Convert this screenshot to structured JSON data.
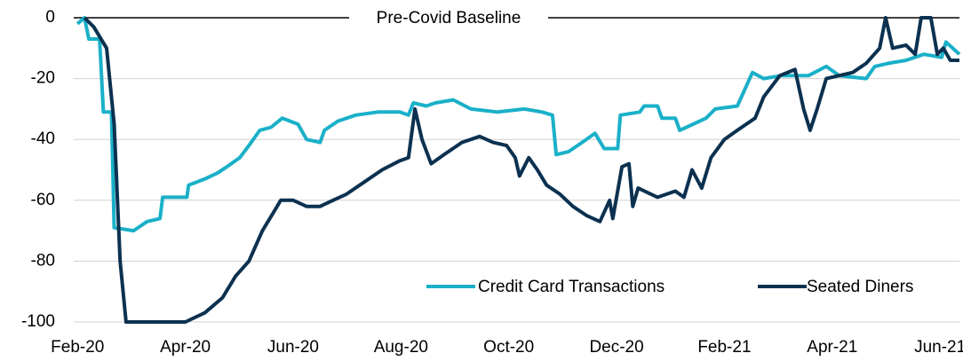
{
  "chart_data": {
    "type": "line",
    "annotation": "Pre-Covid Baseline",
    "xlim": [
      -0.07,
      16.36
    ],
    "xticks": [
      {
        "value": 0,
        "label": "Feb-20"
      },
      {
        "value": 2,
        "label": "Apr-20"
      },
      {
        "value": 4,
        "label": "Jun-20"
      },
      {
        "value": 6,
        "label": "Aug-20"
      },
      {
        "value": 8,
        "label": "Oct-20"
      },
      {
        "value": 10,
        "label": "Dec-20"
      },
      {
        "value": 12,
        "label": "Feb-21"
      },
      {
        "value": 14,
        "label": "Apr-21"
      },
      {
        "value": 16,
        "label": "Jun-21"
      }
    ],
    "ylim": [
      -100,
      0
    ],
    "yticks": [
      0,
      -20,
      -40,
      -60,
      -80,
      -100
    ],
    "grid": true,
    "legend": "lower right",
    "series": [
      {
        "name": "Credit Card Transactions",
        "color": "#1ab0c8",
        "x": [
          0,
          0.13,
          0.21,
          0.41,
          0.48,
          0.63,
          0.68,
          1.04,
          1.29,
          1.53,
          1.58,
          2.03,
          2.06,
          2.36,
          2.6,
          2.77,
          3.01,
          3.18,
          3.38,
          3.59,
          3.8,
          4.09,
          4.25,
          4.5,
          4.58,
          4.83,
          5.16,
          5.57,
          5.98,
          6.14,
          6.23,
          6.47,
          6.64,
          6.97,
          7.3,
          7.79,
          8.29,
          8.62,
          8.81,
          8.88,
          9.11,
          9.36,
          9.6,
          9.77,
          10.02,
          10.07,
          10.43,
          10.51,
          10.76,
          10.84,
          11.09,
          11.17,
          11.42,
          11.66,
          11.83,
          12.24,
          12.52,
          12.73,
          13.06,
          13.56,
          13.89,
          14.13,
          14.63,
          14.79,
          15.04,
          15.37,
          15.7,
          16.03,
          16.11,
          16.36
        ],
        "values": [
          -2,
          0,
          -7,
          -7,
          -31,
          -31,
          -69,
          -70,
          -67,
          -66,
          -59,
          -59,
          -55,
          -53,
          -51,
          -49,
          -46,
          -42,
          -37,
          -36,
          -33,
          -35,
          -40,
          -41,
          -37,
          -34,
          -32,
          -31,
          -31,
          -32,
          -28,
          -29,
          -28,
          -27,
          -30,
          -31,
          -30,
          -31,
          -32,
          -45,
          -44,
          -41,
          -38,
          -43,
          -43,
          -32,
          -31,
          -29,
          -29,
          -33,
          -33,
          -37,
          -35,
          -33,
          -30,
          -29,
          -18,
          -20,
          -19,
          -19,
          -16,
          -19,
          -20,
          -16,
          -15,
          -14,
          -12,
          -13,
          -8,
          -12
        ]
      },
      {
        "name": "Seated Diners",
        "color": "#0c3150",
        "x": [
          0.13,
          0.3,
          0.54,
          0.68,
          0.79,
          0.9,
          2.0,
          2.36,
          2.69,
          2.93,
          3.18,
          3.43,
          3.67,
          3.77,
          4.0,
          4.25,
          4.5,
          4.74,
          4.99,
          5.32,
          5.65,
          5.98,
          6.14,
          6.26,
          6.39,
          6.56,
          6.8,
          7.13,
          7.46,
          7.71,
          7.96,
          8.12,
          8.2,
          8.37,
          8.53,
          8.7,
          8.95,
          9.19,
          9.44,
          9.69,
          9.87,
          9.93,
          10.1,
          10.23,
          10.3,
          10.4,
          10.76,
          11.09,
          11.25,
          11.4,
          11.58,
          11.75,
          12.0,
          12.24,
          12.57,
          12.73,
          13.03,
          13.31,
          13.47,
          13.59,
          13.72,
          13.89,
          14.13,
          14.38,
          14.63,
          14.88,
          14.99,
          15.12,
          15.37,
          15.54,
          15.65,
          15.83,
          15.95,
          16.06,
          16.19,
          16.36
        ],
        "values": [
          0,
          -3,
          -10,
          -35,
          -80,
          -100,
          -100,
          -97,
          -92,
          -85,
          -80,
          -70,
          -63,
          -60,
          -60,
          -62,
          -62,
          -60,
          -58,
          -54,
          -50,
          -47,
          -46,
          -30,
          -40,
          -48,
          -45,
          -41,
          -39,
          -41,
          -42,
          -46,
          -52,
          -46,
          -50,
          -55,
          -58,
          -62,
          -65,
          -67,
          -60,
          -66,
          -49,
          -48,
          -62,
          -56,
          -59,
          -57,
          -59,
          -50,
          -56,
          -46,
          -40,
          -37,
          -33,
          -26,
          -19,
          -17,
          -30,
          -37,
          -30,
          -20,
          -19,
          -18,
          -15,
          -10,
          0,
          -10,
          -9,
          -12,
          0,
          0,
          -12,
          -10,
          -14,
          -14
        ]
      }
    ]
  }
}
